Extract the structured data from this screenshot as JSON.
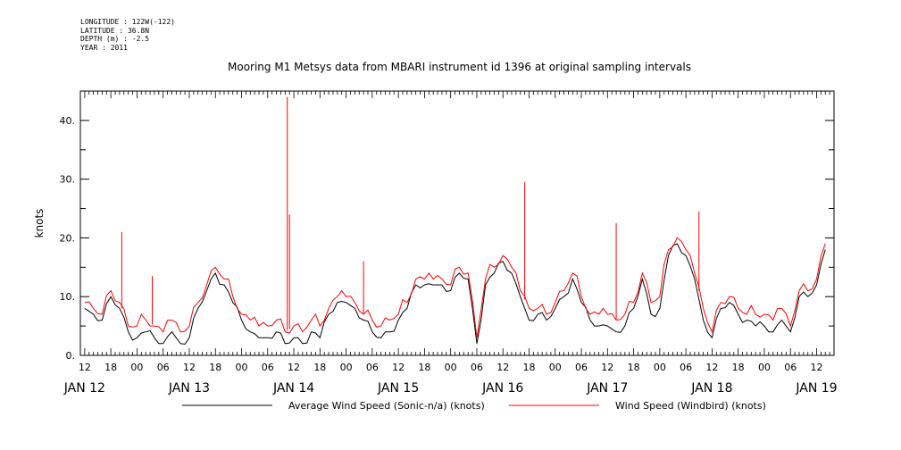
{
  "header": {
    "longitude": "LONGITUDE : 122W(-122)",
    "latitude": "LATITUDE : 36.8N",
    "depth": "DEPTH (m) : -2.5",
    "year": "YEAR : 2011"
  },
  "chart_data": {
    "type": "line",
    "title": "Mooring M1 Metsys data from MBARI instrument id 1396 at original sampling intervals",
    "ylabel": "knots",
    "xlabel": "",
    "ylim": [
      0,
      45
    ],
    "yticks": [
      0,
      10,
      20,
      30,
      40
    ],
    "ytick_labels": [
      "0.",
      "10.",
      "20.",
      "30.",
      "40."
    ],
    "xlim_hours": [
      -1,
      172
    ],
    "hour_ticks": [
      "12",
      "18",
      "00",
      "06",
      "12",
      "18",
      "00",
      "06",
      "12",
      "18",
      "00",
      "06",
      "12",
      "18",
      "00",
      "06",
      "12",
      "18",
      "00",
      "06",
      "12",
      "18",
      "00",
      "06",
      "12",
      "18",
      "00",
      "06",
      "12"
    ],
    "day_labels": [
      "JAN 12",
      "JAN 13",
      "JAN 14",
      "JAN 15",
      "JAN 16",
      "JAN 17",
      "JAN 18",
      "JAN 19"
    ],
    "grid": false,
    "legend_position": "bottom",
    "series": [
      {
        "name": "Average Wind Speed (Sonic-n/a) (knots)",
        "color": "#000000",
        "x_hours": [
          0,
          2,
          4,
          6,
          8,
          10,
          12,
          14,
          16,
          18,
          20,
          22,
          24,
          26,
          28,
          30,
          32,
          34,
          36,
          38,
          40,
          42,
          44,
          46,
          48,
          50,
          52,
          54,
          56,
          58,
          60,
          62,
          64,
          66,
          68,
          70,
          72,
          74,
          76,
          78,
          80,
          82,
          84,
          86,
          88,
          90,
          92,
          94,
          96,
          98,
          100,
          102,
          104,
          106,
          108,
          110,
          112,
          114,
          116,
          118,
          120,
          122,
          124,
          126,
          128,
          130,
          132,
          134,
          136,
          138,
          140,
          142,
          144,
          146,
          148,
          150,
          152,
          154,
          156,
          158,
          160,
          162,
          164,
          166,
          168,
          170
        ],
        "values": [
          8,
          7,
          6,
          10,
          8,
          4,
          3,
          4,
          3,
          2,
          4,
          2,
          3,
          8,
          11,
          14,
          12,
          9,
          6,
          4,
          3,
          3,
          4,
          2,
          3,
          2,
          4,
          3,
          7,
          9,
          9,
          8,
          6,
          4,
          3,
          4,
          6,
          8,
          12,
          12,
          12,
          12,
          11,
          14,
          13,
          2,
          12,
          14,
          16,
          14,
          10,
          6,
          7,
          6,
          8,
          10,
          13,
          9,
          6,
          5,
          5,
          4,
          5,
          8,
          13,
          7,
          8,
          17,
          19,
          17,
          13,
          6,
          3,
          8,
          9,
          7,
          6,
          5,
          5,
          4,
          6,
          4,
          10,
          10,
          12,
          18
        ]
      },
      {
        "name": "Wind Speed (Windbird) (knots)",
        "color": "#ff0000",
        "x_hours": [
          0,
          2,
          4,
          6,
          8,
          10,
          12,
          14,
          16,
          18,
          20,
          22,
          24,
          26,
          28,
          30,
          32,
          34,
          36,
          38,
          40,
          42,
          44,
          46,
          48,
          50,
          52,
          54,
          56,
          58,
          60,
          62,
          64,
          66,
          68,
          70,
          72,
          74,
          76,
          78,
          80,
          82,
          84,
          86,
          88,
          90,
          92,
          94,
          96,
          98,
          100,
          102,
          104,
          106,
          108,
          110,
          112,
          114,
          116,
          118,
          120,
          122,
          124,
          126,
          128,
          130,
          132,
          134,
          136,
          138,
          140,
          142,
          144,
          146,
          148,
          150,
          152,
          154,
          156,
          158,
          160,
          162,
          164,
          166,
          168,
          170
        ],
        "values": [
          9,
          8,
          7,
          11,
          9,
          5,
          5,
          6,
          5,
          4,
          6,
          4,
          5,
          9,
          12,
          15,
          13,
          10,
          7,
          6,
          5,
          5,
          6,
          4,
          5,
          4,
          6,
          5,
          8,
          10,
          10,
          9,
          7,
          6,
          5,
          6,
          7,
          9,
          13,
          13,
          13,
          13,
          12,
          15,
          14,
          3,
          13,
          15,
          17,
          15,
          11,
          8,
          8,
          7,
          9,
          11,
          14,
          10,
          7,
          7,
          7,
          6,
          7,
          9,
          14,
          9,
          10,
          18,
          20,
          18,
          14,
          8,
          4,
          9,
          10,
          8,
          7,
          7,
          7,
          6,
          8,
          5,
          11,
          11,
          13,
          19
        ]
      }
    ],
    "spikes_windbird": [
      {
        "x_hours": 8.5,
        "value": 21
      },
      {
        "x_hours": 15.5,
        "value": 13.5
      },
      {
        "x_hours": 46.5,
        "value": 44
      },
      {
        "x_hours": 47,
        "value": 24
      },
      {
        "x_hours": 64,
        "value": 16
      },
      {
        "x_hours": 101,
        "value": 29.5
      },
      {
        "x_hours": 122,
        "value": 22.5
      },
      {
        "x_hours": 141,
        "value": 24.5
      }
    ]
  }
}
